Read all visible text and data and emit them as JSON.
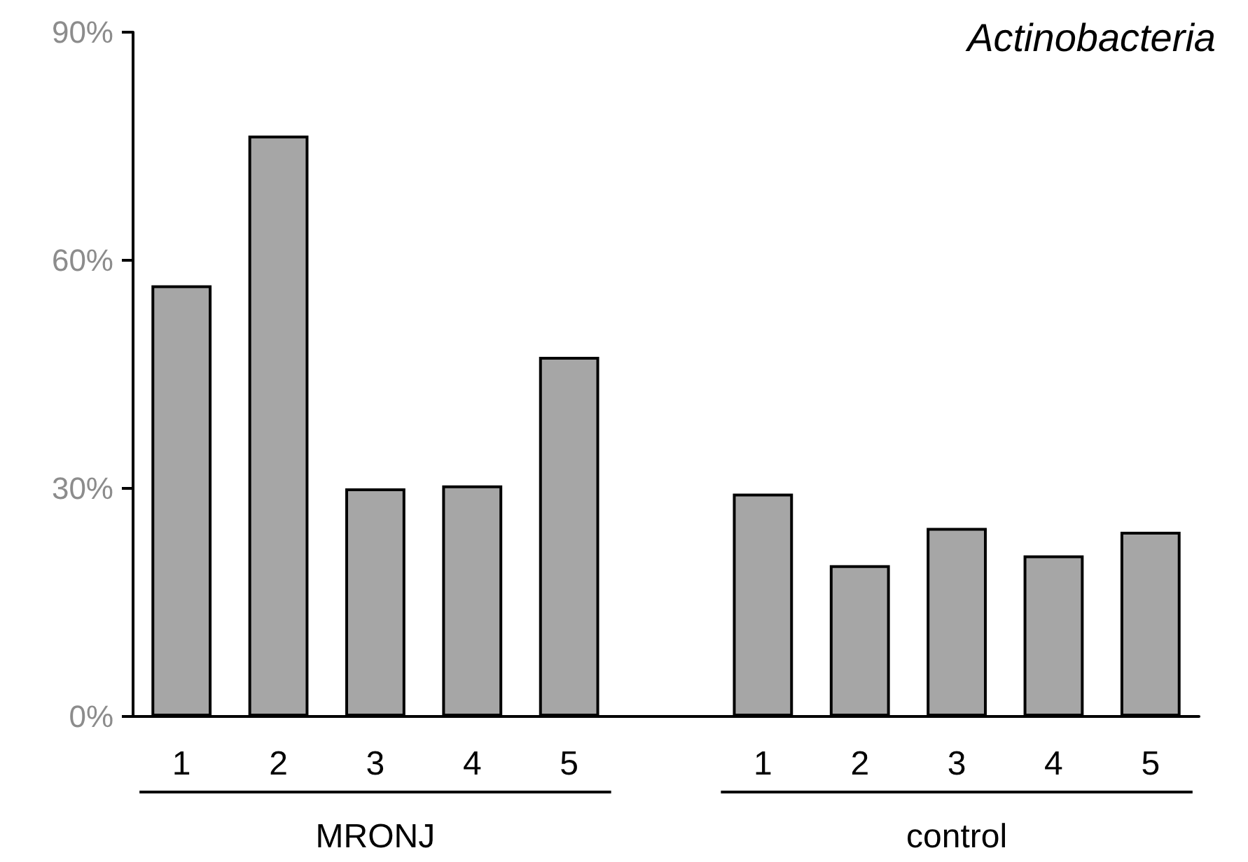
{
  "chart_data": {
    "type": "bar",
    "title": "Actinobacteria",
    "categories": [
      "1",
      "2",
      "3",
      "4",
      "5",
      null,
      "1",
      "2",
      "3",
      "4",
      "5"
    ],
    "values": [
      56.7,
      76.4,
      30.0,
      30.4,
      47.3,
      null,
      29.3,
      19.9,
      24.8,
      21.2,
      24.3
    ],
    "color": "#a6a6a6",
    "ylim": [
      0,
      90
    ],
    "yticks": [
      {
        "value": 0,
        "label": "0%"
      },
      {
        "value": 30,
        "label": "30%"
      },
      {
        "value": 60,
        "label": "60%"
      },
      {
        "value": 90,
        "label": "90%"
      }
    ],
    "annotations": [
      "MRONJ",
      "control"
    ],
    "grid": false
  }
}
